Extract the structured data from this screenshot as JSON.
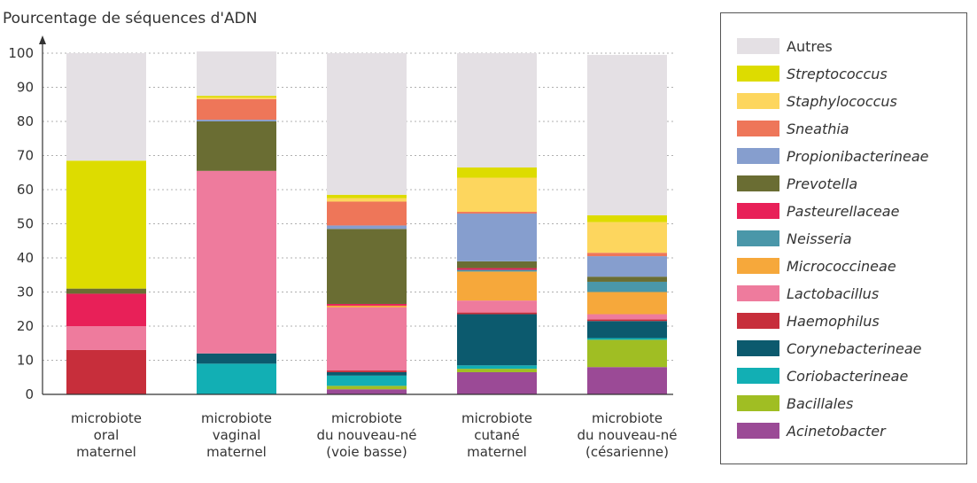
{
  "chart_data": {
    "type": "bar",
    "stacked": true,
    "ylabel": "Pourcentage de séquences d'ADN",
    "ylim": [
      0,
      100
    ],
    "yticks": [
      0,
      10,
      20,
      30,
      40,
      50,
      60,
      70,
      80,
      90,
      100
    ],
    "grid": true,
    "legend_position": "right",
    "categories": [
      [
        "microbiote",
        "oral",
        "maternel"
      ],
      [
        "microbiote",
        "vaginal",
        "maternel"
      ],
      [
        "microbiote",
        "du nouveau-né",
        "(voie basse)"
      ],
      [
        "microbiote",
        "cutané",
        "maternel"
      ],
      [
        "microbiote",
        "du nouveau-né",
        "(césarienne)"
      ]
    ],
    "series": [
      {
        "name": "Acinetobacter",
        "color": "#9B4A96",
        "italic": true,
        "values": [
          0,
          0,
          1.5,
          6.5,
          8
        ]
      },
      {
        "name": "Bacillales",
        "color": "#A0BE23",
        "italic": true,
        "values": [
          0,
          0,
          1,
          1,
          8
        ]
      },
      {
        "name": "Coriobacterineae",
        "color": "#12AFB4",
        "italic": true,
        "values": [
          0,
          9,
          3,
          1,
          0.5
        ]
      },
      {
        "name": "Corynebacterineae",
        "color": "#0C5A6E",
        "italic": true,
        "values": [
          0,
          3,
          1,
          15,
          5
        ]
      },
      {
        "name": "Haemophilus",
        "color": "#C72E3B",
        "italic": true,
        "values": [
          13,
          0,
          0.5,
          0.5,
          0.5
        ]
      },
      {
        "name": "Lactobacillus",
        "color": "#EE7B9D",
        "italic": true,
        "values": [
          7,
          53.5,
          18.5,
          3.5,
          1.5
        ]
      },
      {
        "name": "Micrococcineae",
        "color": "#F6A83B",
        "italic": true,
        "values": [
          0,
          0,
          0.5,
          8.5,
          6.5
        ]
      },
      {
        "name": "Neisseria",
        "color": "#4A97A9",
        "italic": true,
        "values": [
          0,
          0,
          0,
          0.5,
          3
        ]
      },
      {
        "name": "Pasteurellaceae",
        "color": "#E82058",
        "italic": true,
        "values": [
          9.5,
          0,
          0.5,
          0.5,
          0
        ]
      },
      {
        "name": "Prevotella",
        "color": "#6A6D33",
        "italic": true,
        "values": [
          1.5,
          14.5,
          22,
          2,
          1.5
        ]
      },
      {
        "name": "Propionibacterineae",
        "color": "#869ECE",
        "italic": true,
        "values": [
          0,
          0.5,
          1,
          14,
          6
        ]
      },
      {
        "name": "Sneathia",
        "color": "#EE7659",
        "italic": true,
        "values": [
          0,
          6,
          7,
          0.5,
          1
        ]
      },
      {
        "name": "Staphylococcus",
        "color": "#FDD65E",
        "italic": true,
        "values": [
          0,
          0.5,
          1,
          10,
          9
        ]
      },
      {
        "name": "Streptococcus",
        "color": "#DDDC00",
        "italic": true,
        "values": [
          37.5,
          0.5,
          1,
          3,
          2
        ]
      },
      {
        "name": "Autres",
        "color": "#E4E0E4",
        "italic": false,
        "values": [
          31.5,
          13,
          41.5,
          33.5,
          47
        ]
      }
    ]
  }
}
